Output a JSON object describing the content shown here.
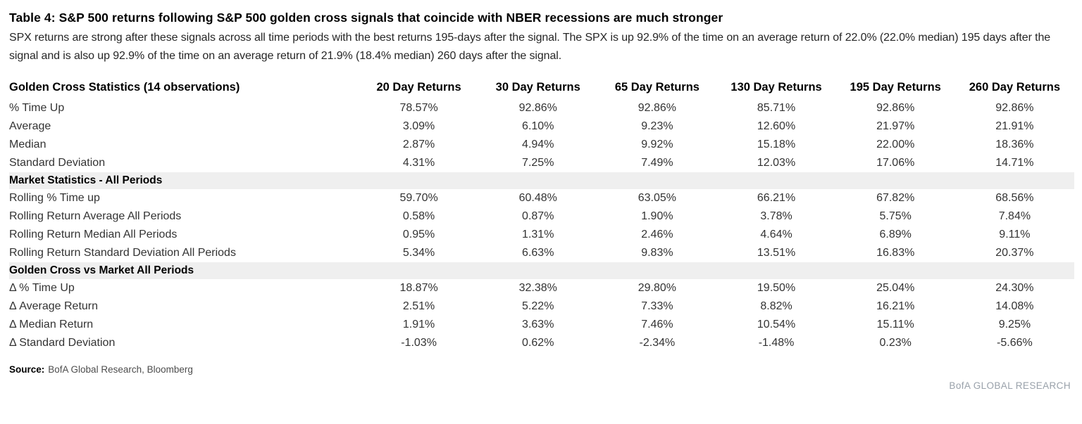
{
  "header": {
    "title": "Table 4: S&P 500 returns following S&P 500 golden cross signals that coincide with NBER recessions are much stronger",
    "subtitle": "SPX returns are strong after these signals across all time periods with the best returns 195-days after the signal. The SPX is up 92.9% of the time on an average return of 22.0% (22.0% median) 195 days after the signal and is also up 92.9% of the time on an average return of 21.9% (18.4% median) 260 days after the signal."
  },
  "footer": {
    "source_label": "Source:",
    "source_text": "BofA Global Research, Bloomberg",
    "brand": "BofA GLOBAL RESEARCH"
  },
  "colors": {
    "text": "#000000",
    "body_text": "#333333",
    "section_band": "#efefef",
    "brand_gray": "#99a1aa"
  },
  "chart_data": {
    "type": "table",
    "title": "Table 4: S&P 500 returns following S&P 500 golden cross signals that coincide with NBER recessions are much stronger",
    "columns": [
      "Golden Cross Statistics (14 observations)",
      "20 Day Returns",
      "30 Day Returns",
      "65 Day Returns",
      "130 Day Returns",
      "195 Day Returns",
      "260 Day Returns"
    ],
    "sections": [
      {
        "header": null,
        "rows": [
          {
            "label": "% Time Up",
            "values": [
              "78.57%",
              "92.86%",
              "92.86%",
              "85.71%",
              "92.86%",
              "92.86%"
            ]
          },
          {
            "label": "Average",
            "values": [
              "3.09%",
              "6.10%",
              "9.23%",
              "12.60%",
              "21.97%",
              "21.91%"
            ]
          },
          {
            "label": "Median",
            "values": [
              "2.87%",
              "4.94%",
              "9.92%",
              "15.18%",
              "22.00%",
              "18.36%"
            ]
          },
          {
            "label": "Standard Deviation",
            "values": [
              "4.31%",
              "7.25%",
              "7.49%",
              "12.03%",
              "17.06%",
              "14.71%"
            ]
          }
        ]
      },
      {
        "header": "Market Statistics - All Periods",
        "rows": [
          {
            "label": "Rolling % Time up",
            "values": [
              "59.70%",
              "60.48%",
              "63.05%",
              "66.21%",
              "67.82%",
              "68.56%"
            ]
          },
          {
            "label": "Rolling Return Average All Periods",
            "values": [
              "0.58%",
              "0.87%",
              "1.90%",
              "3.78%",
              "5.75%",
              "7.84%"
            ]
          },
          {
            "label": "Rolling Return Median All Periods",
            "values": [
              "0.95%",
              "1.31%",
              "2.46%",
              "4.64%",
              "6.89%",
              "9.11%"
            ]
          },
          {
            "label": "Rolling Return Standard Deviation All Periods",
            "values": [
              "5.34%",
              "6.63%",
              "9.83%",
              "13.51%",
              "16.83%",
              "20.37%"
            ]
          }
        ]
      },
      {
        "header": "Golden Cross vs Market All Periods",
        "rows": [
          {
            "label": "Δ % Time Up",
            "values": [
              "18.87%",
              "32.38%",
              "29.80%",
              "19.50%",
              "25.04%",
              "24.30%"
            ]
          },
          {
            "label": "Δ Average Return",
            "values": [
              "2.51%",
              "5.22%",
              "7.33%",
              "8.82%",
              "16.21%",
              "14.08%"
            ]
          },
          {
            "label": "Δ Median Return",
            "values": [
              "1.91%",
              "3.63%",
              "7.46%",
              "10.54%",
              "15.11%",
              "9.25%"
            ]
          },
          {
            "label": "Δ Standard Deviation",
            "values": [
              "-1.03%",
              "0.62%",
              "-2.34%",
              "-1.48%",
              "0.23%",
              "-5.66%"
            ]
          }
        ]
      }
    ]
  }
}
